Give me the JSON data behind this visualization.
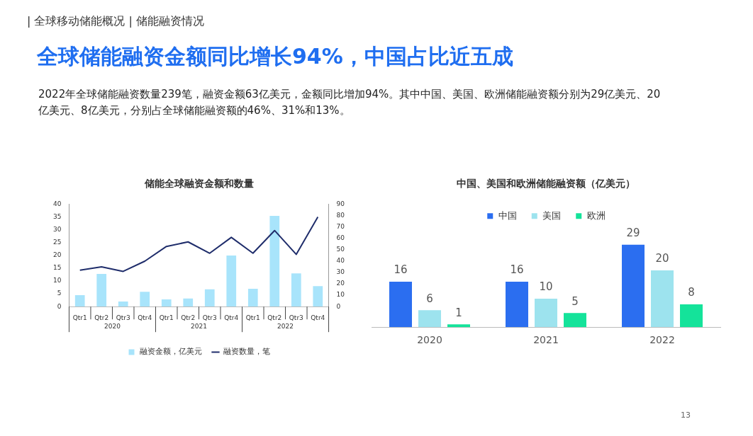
{
  "chart_data": [
    {
      "type": "other",
      "title": "全球储能融资金额同比增长94%，中国占比近五成",
      "subtitle": "2022年全球储能融资数量239笔，融资金额63亿美元，金额同比增加94%。其中中国、美国、欧洲储能融资额分别为29亿美元、20亿美元、8亿美元，分别占全球储能融资额的46%、31%和13%。",
      "annotations": [
        "| 全球移动储能概况 | 储能融资情况",
        "13"
      ]
    },
    {
      "type": "bar",
      "title": "储能全球融资金额和数量",
      "categories": [
        "Qtr1",
        "Qtr2",
        "Qtr3",
        "Qtr4",
        "Qtr1",
        "Qtr2",
        "Qtr3",
        "Qtr4",
        "Qtr1",
        "Qtr2",
        "Qtr3",
        "Qtr4"
      ],
      "series": [
        {
          "name": "融资金额，亿美元",
          "color": "#a8e4fb",
          "values": [
            4.5,
            12.8,
            2,
            5.8,
            2.8,
            3.2,
            6.8,
            20,
            7,
            35.5,
            13,
            8
          ]
        },
        {
          "name": "融资数量，笔",
          "type": "line",
          "axis": "y2",
          "color": "#1f2d6b",
          "values": [
            32,
            35,
            31,
            40,
            53,
            57,
            47,
            61,
            47,
            67,
            46,
            79
          ]
        }
      ],
      "ylim": [
        0,
        40
      ],
      "yticks": [
        0,
        5,
        10,
        15,
        20,
        25,
        30,
        35,
        40
      ],
      "y2lim": [
        0,
        90
      ],
      "y2ticks": [
        0,
        10,
        20,
        30,
        40,
        50,
        60,
        70,
        80,
        90
      ],
      "legend": "bottom",
      "annotations": [
        "2020",
        "2021",
        "2022"
      ]
    },
    {
      "type": "bar",
      "title": "中国、美国和欧洲储能融资额（亿美元）",
      "categories": [
        "2020",
        "2021",
        "2022"
      ],
      "series": [
        {
          "name": "中国",
          "color": "#2b6ef0",
          "values": [
            16,
            16,
            29
          ]
        },
        {
          "name": "美国",
          "color": "#9de3ee",
          "values": [
            6,
            10,
            20
          ]
        },
        {
          "name": "欧洲",
          "color": "#14e39a",
          "values": [
            1,
            5,
            8
          ]
        }
      ],
      "data_labels": true,
      "legend": "top",
      "tick_labels": "x"
    }
  ]
}
